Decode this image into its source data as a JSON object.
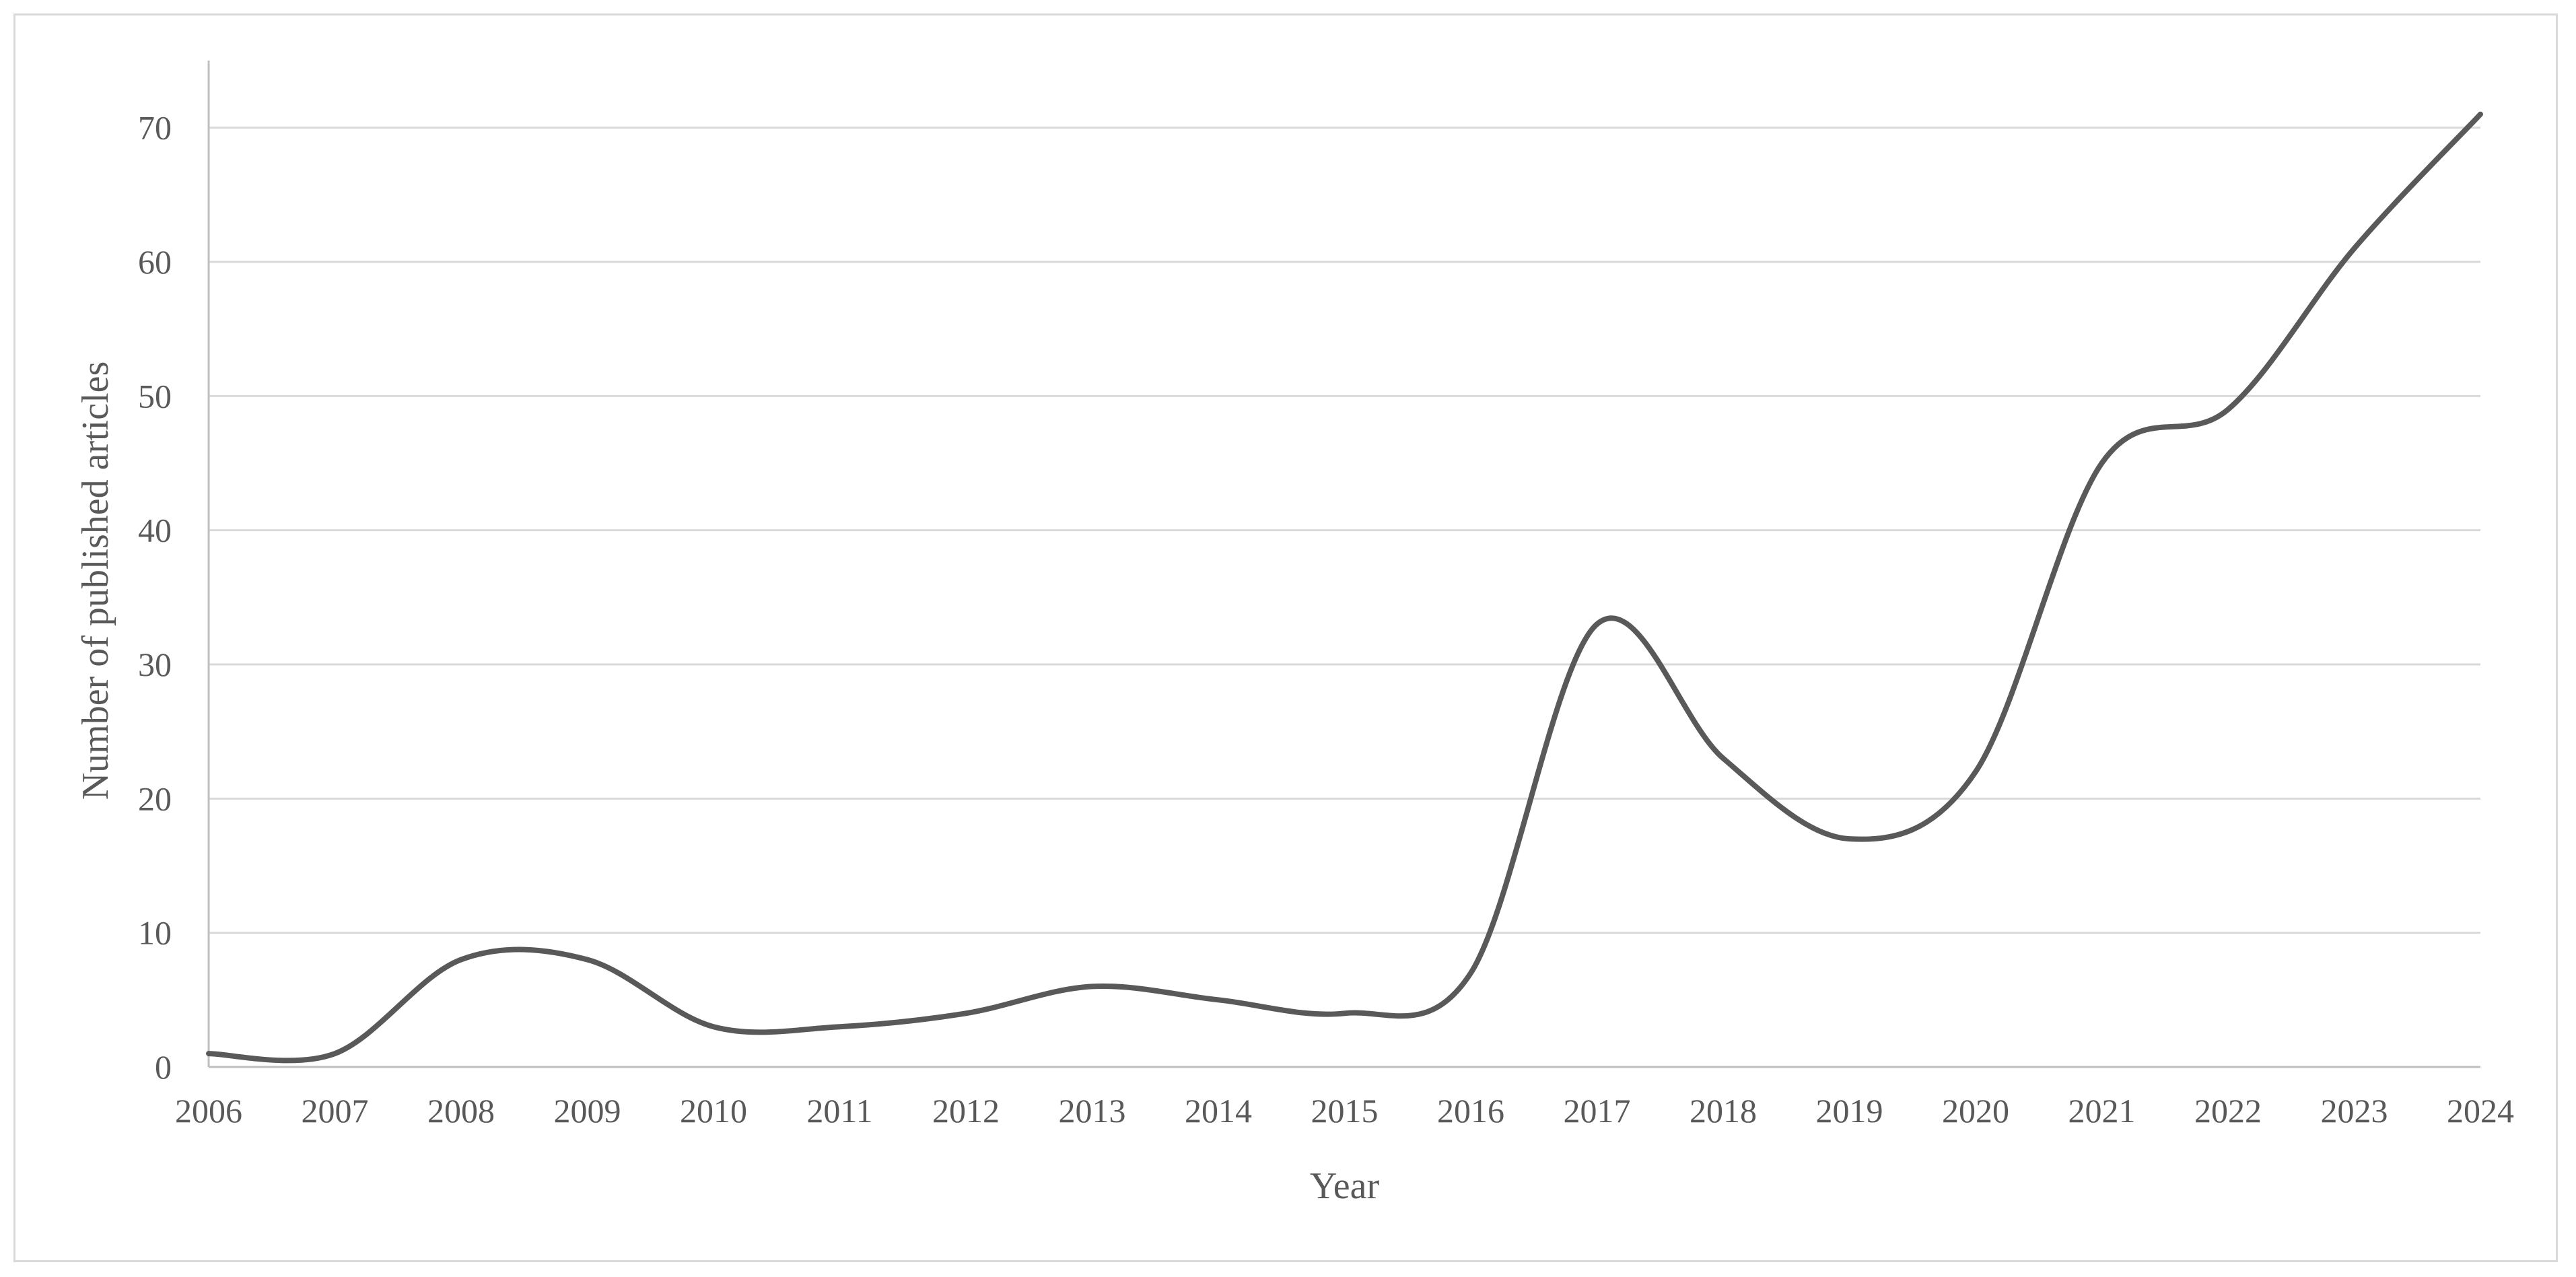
{
  "chart_data": {
    "type": "line",
    "title": "",
    "xlabel": "Year",
    "ylabel": "Number of published articles",
    "x": [
      "2006",
      "2007",
      "2008",
      "2009",
      "2010",
      "2011",
      "2012",
      "2013",
      "2014",
      "2015",
      "2016",
      "2017",
      "2018",
      "2019",
      "2020",
      "2021",
      "2022",
      "2023",
      "2024"
    ],
    "series": [
      {
        "values": [
          1,
          1,
          8,
          8,
          3,
          3,
          4,
          6,
          5,
          4,
          7,
          33,
          23,
          17,
          22,
          45,
          49,
          61,
          71
        ]
      }
    ],
    "ylim": [
      0,
      75
    ],
    "yticks": [
      0,
      10,
      20,
      30,
      40,
      50,
      60,
      70
    ],
    "smoothed": true,
    "grid": "horizontal",
    "legend": "none",
    "line_color": "#595959"
  }
}
